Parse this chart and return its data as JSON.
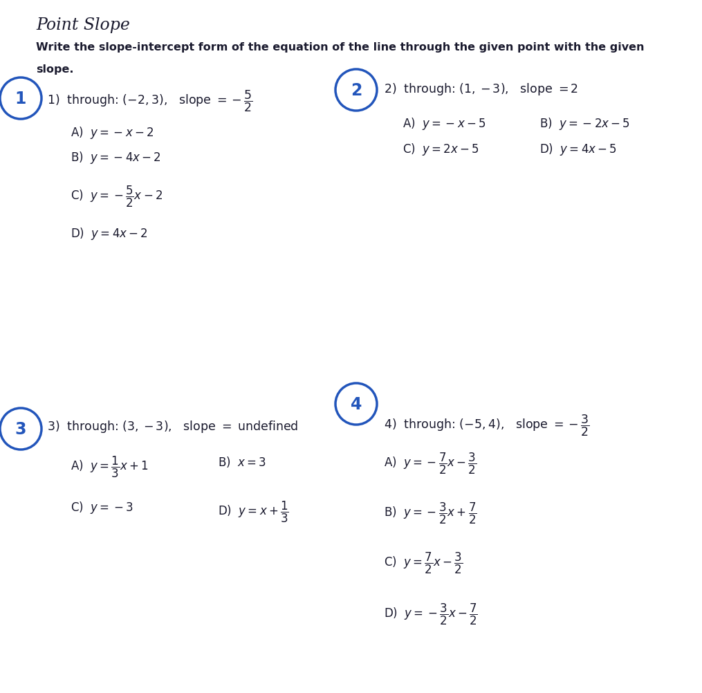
{
  "title": "Point Slope",
  "subtitle_line1": "Write the slope-intercept form of the equation of the line through the given point with the given",
  "subtitle_line2": "slope.",
  "bg_color": "#ffffff",
  "circle_color": "#2255bb",
  "text_color": "#1a1a2e",
  "figw": 10.15,
  "figh": 10.03,
  "dpi": 100
}
